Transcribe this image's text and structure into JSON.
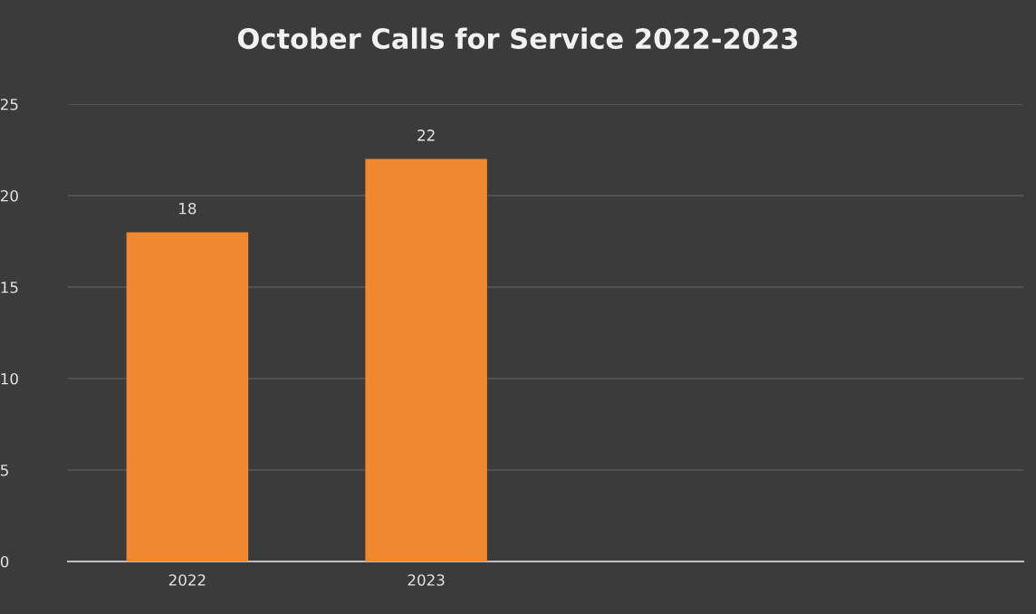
{
  "chart_data": {
    "type": "bar",
    "title": "October Calls for Service 2022-2023",
    "categories": [
      "2022",
      "2023",
      null,
      null
    ],
    "values": [
      18,
      22,
      null,
      null
    ],
    "color": "#f0882f",
    "ylim": [
      0,
      25
    ],
    "yticks": [
      0,
      5,
      10,
      15,
      20,
      25
    ],
    "grid": "y",
    "data_labels": true,
    "legend": false
  }
}
